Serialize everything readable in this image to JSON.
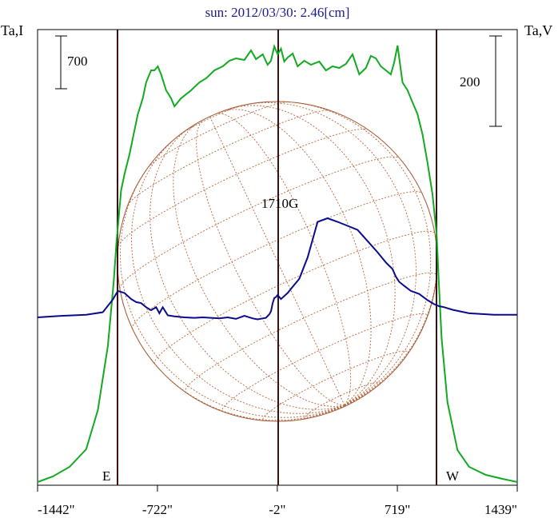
{
  "chart_data": {
    "type": "line",
    "title": "sun: 2012/03/30: 2.46[cm]",
    "y_left_label": "Ta,I",
    "y_right_label": "Ta,V",
    "x_ticks": [
      "-1442\"",
      "-722\"",
      "-2\"",
      "719\"",
      "1439\""
    ],
    "x_tick_values": [
      -1442,
      -722,
      -2,
      719,
      1439
    ],
    "xlim": [
      -1442,
      1439
    ],
    "scale_bar_left": "700",
    "scale_bar_right": "200",
    "limb_labels": [
      "E",
      "W"
    ],
    "limb_positions": [
      -960,
      958
    ],
    "center_line": -2,
    "annotation": "1710G",
    "disk_radius": 958,
    "colors": {
      "intensity": "#11aa22",
      "polarization": "#0a0a8c",
      "disk": "#a0522d",
      "limb_lines": "#3a1010"
    },
    "series": [
      {
        "name": "",
        "color": "#11aa22",
        "x": [
          -1442,
          -1350,
          -1250,
          -1150,
          -1080,
          -1020,
          -985,
          -968,
          -955,
          -940,
          -920,
          -890,
          -860,
          -840,
          -810,
          -790,
          -760,
          -740,
          -720,
          -700,
          -670,
          -640,
          -620,
          -580,
          -520,
          -470,
          -430,
          -380,
          -330,
          -290,
          -250,
          -200,
          -160,
          -130,
          -90,
          -60,
          -40,
          -20,
          0,
          20,
          40,
          60,
          90,
          120,
          160,
          200,
          250,
          290,
          330,
          370,
          410,
          450,
          490,
          530,
          560,
          590,
          620,
          650,
          680,
          700,
          720,
          750,
          780,
          810,
          840,
          870,
          900,
          930,
          955,
          968,
          985,
          1020,
          1080,
          1150,
          1250,
          1350,
          1439
        ],
        "y": [
          0,
          70,
          190,
          410,
          900,
          1700,
          2500,
          3000,
          3300,
          3650,
          3850,
          4100,
          4400,
          4600,
          4800,
          5000,
          5150,
          5150,
          5200,
          5100,
          4900,
          4800,
          4700,
          4800,
          4900,
          5000,
          5050,
          5150,
          5200,
          5270,
          5300,
          5280,
          5400,
          5290,
          5350,
          5220,
          5270,
          5450,
          5350,
          5420,
          5260,
          5310,
          5360,
          5200,
          5270,
          5220,
          5260,
          5150,
          5200,
          5180,
          5230,
          5350,
          5100,
          5180,
          5330,
          5300,
          5200,
          5150,
          5100,
          5250,
          5460,
          5000,
          4900,
          4750,
          4600,
          4350,
          4000,
          3600,
          3100,
          2500,
          1800,
          1000,
          400,
          190,
          90,
          40,
          0
        ]
      },
      {
        "name": "",
        "color": "#0a0a8c",
        "x": [
          -1442,
          -1300,
          -1150,
          -1050,
          -990,
          -960,
          -920,
          -880,
          -850,
          -820,
          -790,
          -760,
          -730,
          -710,
          -690,
          -660,
          -620,
          -560,
          -500,
          -450,
          -400,
          -350,
          -300,
          -250,
          -200,
          -150,
          -120,
          -90,
          -70,
          -50,
          -40,
          -30,
          -20,
          -10,
          0,
          10,
          20,
          40,
          60,
          90,
          130,
          180,
          240,
          300,
          360,
          420,
          480,
          540,
          600,
          650,
          690,
          710,
          730,
          760,
          800,
          850,
          900,
          940,
          970,
          1000,
          1050,
          1150,
          1300,
          1439
        ],
        "y": [
          0,
          3,
          5,
          10,
          35,
          52,
          48,
          36,
          30,
          28,
          20,
          14,
          20,
          8,
          20,
          4,
          2,
          0,
          -1,
          0,
          -1,
          -2,
          0,
          -3,
          3,
          -2,
          -4,
          -2,
          -1,
          6,
          12,
          28,
          38,
          40,
          44,
          40,
          36,
          42,
          48,
          60,
          76,
          118,
          188,
          195,
          188,
          180,
          172,
          150,
          128,
          108,
          95,
          80,
          70,
          62,
          52,
          46,
          34,
          26,
          22,
          20,
          15,
          8,
          5,
          5
        ]
      }
    ]
  }
}
